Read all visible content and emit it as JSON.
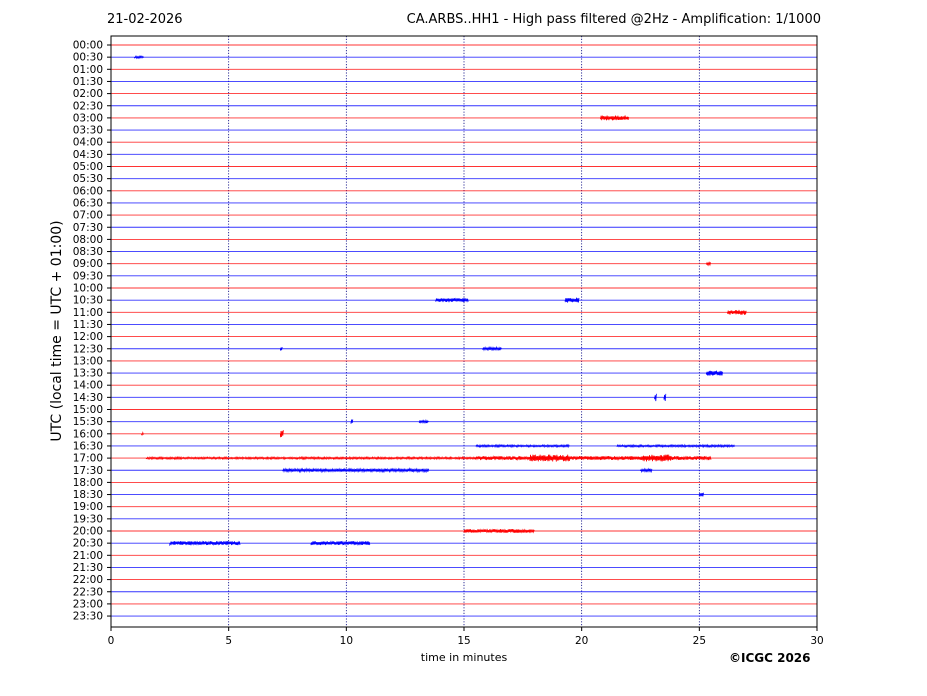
{
  "header": {
    "date": "21-02-2026",
    "title": "CA.ARBS..HH1 - High pass filtered @2Hz - Amplification: 1/1000"
  },
  "footer": {
    "copyright": "©ICGC 2026"
  },
  "colors": {
    "trace_a": "#ff0000",
    "trace_b": "#0000ff",
    "frame": "#000000",
    "grid": "#000080"
  },
  "chart_data": {
    "type": "line",
    "title": "CA.ARBS..HH1 - High pass filtered @2Hz - Amplification: 1/1000",
    "xlabel": "time in minutes",
    "ylabel": "UTC (local time = UTC + 01:00)",
    "xlim": [
      0,
      30
    ],
    "x_ticks": [
      0,
      5,
      10,
      15,
      20,
      25,
      30
    ],
    "x_grid": "dotted vertical lines at 5, 10, 15, 20, 25",
    "row_colors": [
      "red",
      "blue"
    ],
    "rows": [
      "00:00",
      "00:30",
      "01:00",
      "01:30",
      "02:00",
      "02:30",
      "03:00",
      "03:30",
      "04:00",
      "04:30",
      "05:00",
      "05:30",
      "06:00",
      "06:30",
      "07:00",
      "07:30",
      "08:00",
      "08:30",
      "09:00",
      "09:30",
      "10:00",
      "10:30",
      "11:00",
      "11:30",
      "12:00",
      "12:30",
      "13:00",
      "13:30",
      "14:00",
      "14:30",
      "15:00",
      "15:30",
      "16:00",
      "16:30",
      "17:00",
      "17:30",
      "18:00",
      "18:30",
      "19:00",
      "19:30",
      "20:00",
      "20:30",
      "21:00",
      "21:30",
      "22:00",
      "22:30",
      "23:00",
      "23:30"
    ],
    "events": [
      {
        "row": "00:30",
        "start": 1.0,
        "end": 1.4,
        "amp": 1.0
      },
      {
        "row": "03:00",
        "start": 20.8,
        "end": 22.0,
        "amp": 2.5
      },
      {
        "row": "09:00",
        "start": 25.3,
        "end": 25.5,
        "amp": 1.5
      },
      {
        "row": "10:30",
        "start": 13.8,
        "end": 15.2,
        "amp": 2.0
      },
      {
        "row": "10:30",
        "start": 19.3,
        "end": 19.9,
        "amp": 2.5
      },
      {
        "row": "11:00",
        "start": 26.2,
        "end": 27.0,
        "amp": 2.5
      },
      {
        "row": "12:30",
        "start": 7.2,
        "end": 7.3,
        "amp": 2.0
      },
      {
        "row": "12:30",
        "start": 15.8,
        "end": 16.6,
        "amp": 1.5
      },
      {
        "row": "13:30",
        "start": 25.3,
        "end": 26.0,
        "amp": 2.5
      },
      {
        "row": "14:30",
        "start": 23.1,
        "end": 23.2,
        "amp": 4.0
      },
      {
        "row": "14:30",
        "start": 23.5,
        "end": 23.6,
        "amp": 4.0
      },
      {
        "row": "15:30",
        "start": 10.2,
        "end": 10.3,
        "amp": 2.5
      },
      {
        "row": "15:30",
        "start": 13.1,
        "end": 13.5,
        "amp": 1.5
      },
      {
        "row": "16:00",
        "start": 7.2,
        "end": 7.35,
        "amp": 4.0
      },
      {
        "row": "16:00",
        "start": 1.3,
        "end": 1.4,
        "amp": 1.5
      },
      {
        "row": "16:30",
        "start": 15.5,
        "end": 19.5,
        "amp": 1.0
      },
      {
        "row": "16:30",
        "start": 21.5,
        "end": 26.5,
        "amp": 1.0
      },
      {
        "row": "17:00",
        "start": 1.5,
        "end": 15.5,
        "amp": 1.0
      },
      {
        "row": "17:00",
        "start": 15.5,
        "end": 25.5,
        "amp": 2.0
      },
      {
        "row": "17:00",
        "start": 17.8,
        "end": 19.5,
        "amp": 3.5
      },
      {
        "row": "17:00",
        "start": 22.6,
        "end": 23.8,
        "amp": 3.5
      },
      {
        "row": "17:30",
        "start": 7.3,
        "end": 13.5,
        "amp": 1.5
      },
      {
        "row": "17:30",
        "start": 22.5,
        "end": 23.0,
        "amp": 1.5
      },
      {
        "row": "18:30",
        "start": 25.0,
        "end": 25.2,
        "amp": 2.0
      },
      {
        "row": "20:00",
        "start": 15.0,
        "end": 18.0,
        "amp": 2.0
      },
      {
        "row": "20:30",
        "start": 2.5,
        "end": 5.5,
        "amp": 2.0
      },
      {
        "row": "20:30",
        "start": 8.5,
        "end": 11.0,
        "amp": 2.0
      }
    ]
  }
}
